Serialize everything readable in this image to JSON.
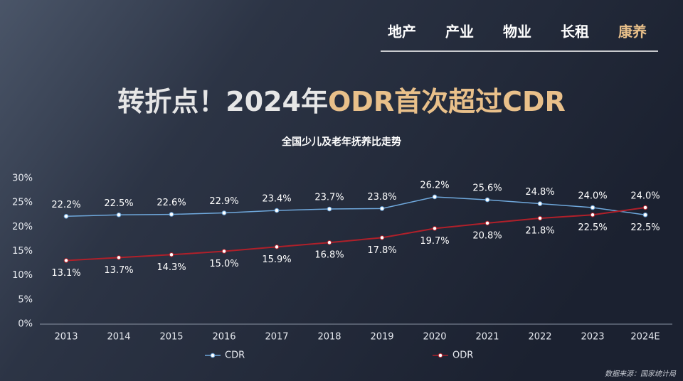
{
  "nav": [
    "地产",
    "产业",
    "物业",
    "长租",
    "康养"
  ],
  "headline": [
    "转折点！2024年",
    "ODR首次超过CDR"
  ],
  "source": "数据来源：国家统计局",
  "chart_data": {
    "type": "line",
    "title": "全国少儿及老年抚养比走势",
    "categories": [
      "2013",
      "2014",
      "2015",
      "2016",
      "2017",
      "2018",
      "2019",
      "2020",
      "2021",
      "2022",
      "2023",
      "2024E"
    ],
    "series": [
      {
        "name": "CDR",
        "color": "#6fa8dc",
        "values": [
          22.2,
          22.5,
          22.6,
          22.9,
          23.4,
          23.7,
          23.8,
          26.2,
          25.6,
          24.8,
          24.0,
          22.5
        ],
        "value_labels": [
          "22.2%",
          "22.5%",
          "22.6%",
          "22.9%",
          "23.4%",
          "23.7%",
          "23.8%",
          "26.2%",
          "25.6%",
          "24.8%",
          "24.0%",
          "22.5%"
        ]
      },
      {
        "name": "ODR",
        "color": "#b0202a",
        "values": [
          13.1,
          13.7,
          14.3,
          15.0,
          15.9,
          16.8,
          17.8,
          19.7,
          20.8,
          21.8,
          22.5,
          24.0
        ],
        "value_labels": [
          "13.1%",
          "13.7%",
          "14.3%",
          "15.0%",
          "15.9%",
          "16.8%",
          "17.8%",
          "19.7%",
          "20.8%",
          "21.8%",
          "22.5%",
          "24.0%"
        ]
      }
    ],
    "ylim": [
      0,
      30
    ],
    "yticks": [
      {
        "value": 0,
        "label": "0%"
      },
      {
        "value": 5,
        "label": "5%"
      },
      {
        "value": 10,
        "label": "10%"
      },
      {
        "value": 15,
        "label": "15%"
      },
      {
        "value": 20,
        "label": "20%"
      },
      {
        "value": 25,
        "label": "25%"
      },
      {
        "value": 30,
        "label": "30%"
      }
    ],
    "legend": "bottom"
  }
}
